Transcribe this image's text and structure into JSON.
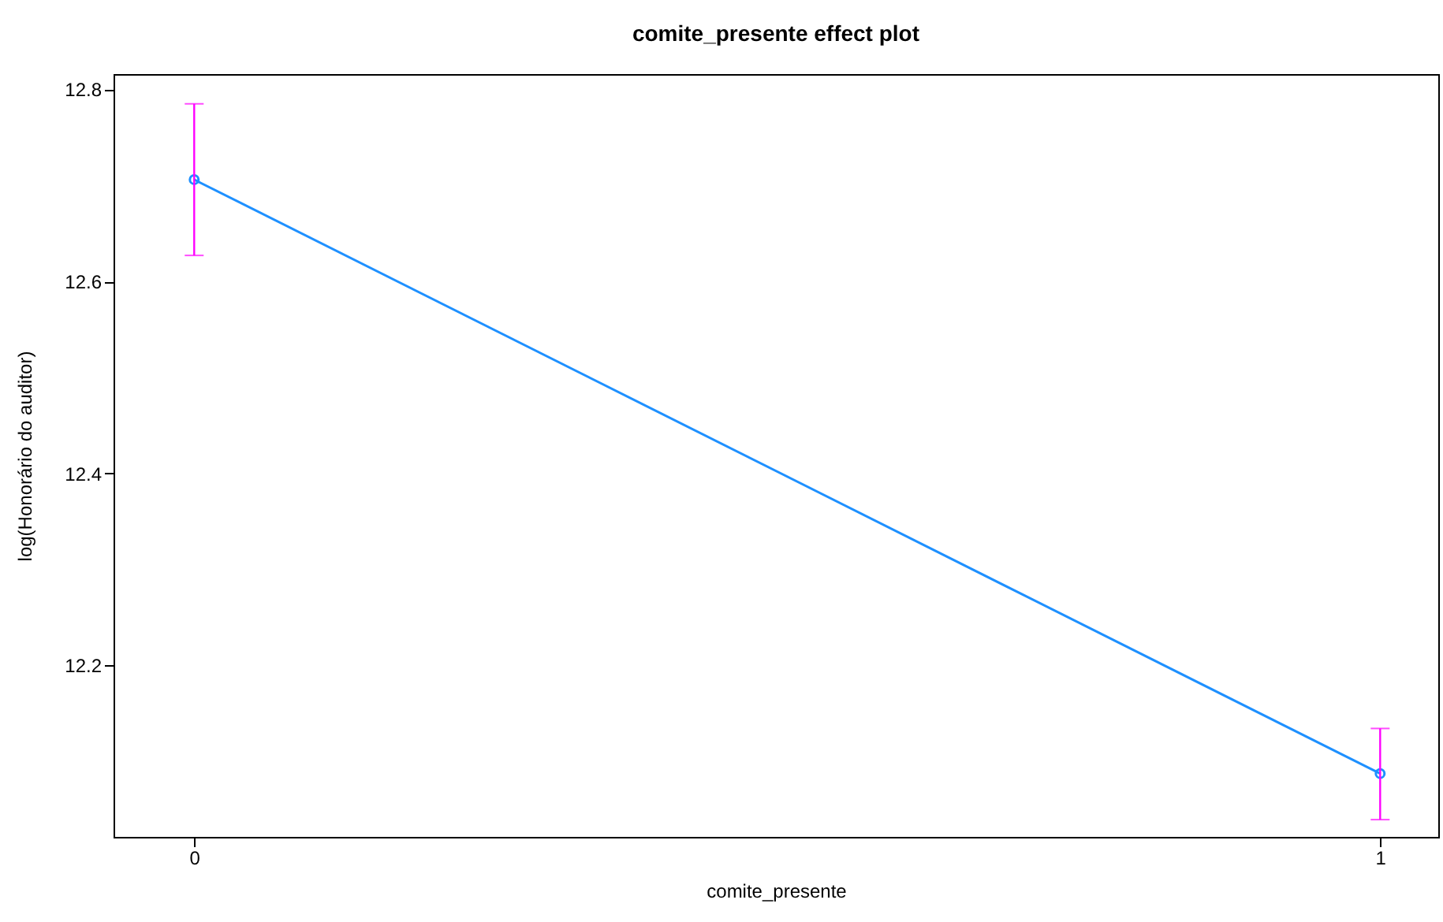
{
  "chart_data": {
    "type": "line",
    "title": "comite_presente effect plot",
    "xlabel": "comite_presente",
    "ylabel": "log(Honorário do auditor)",
    "x": [
      0,
      1
    ],
    "xlim": [
      -0.068,
      1.049
    ],
    "xticks": [
      0,
      1
    ],
    "ylim": [
      12.021,
      12.816
    ],
    "yticks": [
      12.2,
      12.4,
      12.6,
      12.8
    ],
    "series": [
      {
        "color": "#1e90ff",
        "values": [
          12.706,
          12.087
        ],
        "errors": [
          [
            12.627,
            12.785
          ],
          [
            12.039,
            12.134
          ]
        ]
      }
    ],
    "marker": "circle",
    "grid": false,
    "legend": false
  }
}
